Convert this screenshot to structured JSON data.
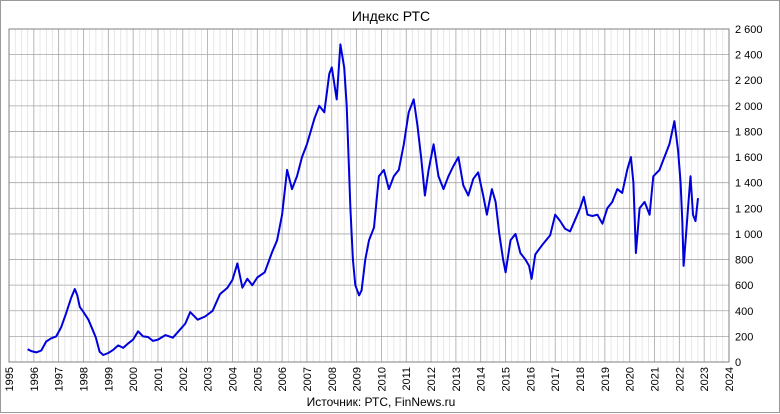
{
  "chart_data": {
    "type": "line",
    "title": "Индекс РТС",
    "source_note": "Источник: РТС, FinNews.ru",
    "xlabel": "",
    "ylabel": "",
    "xlim": [
      1995,
      2024
    ],
    "ylim": [
      0,
      2600
    ],
    "x_ticks": [
      1995,
      1996,
      1997,
      1998,
      1999,
      2000,
      2001,
      2002,
      2003,
      2004,
      2005,
      2006,
      2007,
      2008,
      2009,
      2010,
      2011,
      2012,
      2013,
      2014,
      2015,
      2016,
      2017,
      2018,
      2019,
      2020,
      2021,
      2022,
      2023,
      2024
    ],
    "y_ticks": [
      {
        "value": 0,
        "label": "0"
      },
      {
        "value": 200,
        "label": "200"
      },
      {
        "value": 400,
        "label": "400"
      },
      {
        "value": 600,
        "label": "600"
      },
      {
        "value": 800,
        "label": "800"
      },
      {
        "value": 1000,
        "label": "1 000"
      },
      {
        "value": 1200,
        "label": "1 200"
      },
      {
        "value": 1400,
        "label": "1 400"
      },
      {
        "value": 1600,
        "label": "1 600"
      },
      {
        "value": 1800,
        "label": "1 800"
      },
      {
        "value": 2000,
        "label": "2 000"
      },
      {
        "value": 2200,
        "label": "2 200"
      },
      {
        "value": 2400,
        "label": "2 400"
      },
      {
        "value": 2600,
        "label": "2 600"
      }
    ],
    "grid": true,
    "series": [
      {
        "color": "#0000dd",
        "points": [
          [
            1995.75,
            100
          ],
          [
            1995.9,
            85
          ],
          [
            1996.1,
            75
          ],
          [
            1996.3,
            90
          ],
          [
            1996.5,
            160
          ],
          [
            1996.7,
            185
          ],
          [
            1996.9,
            200
          ],
          [
            1997.1,
            270
          ],
          [
            1997.3,
            380
          ],
          [
            1997.5,
            500
          ],
          [
            1997.65,
            570
          ],
          [
            1997.75,
            520
          ],
          [
            1997.85,
            430
          ],
          [
            1998.0,
            390
          ],
          [
            1998.2,
            330
          ],
          [
            1998.35,
            260
          ],
          [
            1998.5,
            190
          ],
          [
            1998.65,
            80
          ],
          [
            1998.8,
            55
          ],
          [
            1999.0,
            70
          ],
          [
            1999.2,
            95
          ],
          [
            1999.4,
            130
          ],
          [
            1999.6,
            110
          ],
          [
            1999.8,
            145
          ],
          [
            2000.0,
            175
          ],
          [
            2000.2,
            240
          ],
          [
            2000.4,
            200
          ],
          [
            2000.6,
            195
          ],
          [
            2000.8,
            165
          ],
          [
            2001.0,
            175
          ],
          [
            2001.3,
            210
          ],
          [
            2001.6,
            190
          ],
          [
            2001.9,
            255
          ],
          [
            2002.1,
            300
          ],
          [
            2002.3,
            390
          ],
          [
            2002.6,
            330
          ],
          [
            2002.9,
            355
          ],
          [
            2003.2,
            400
          ],
          [
            2003.5,
            530
          ],
          [
            2003.8,
            580
          ],
          [
            2004.0,
            640
          ],
          [
            2004.2,
            770
          ],
          [
            2004.4,
            580
          ],
          [
            2004.6,
            650
          ],
          [
            2004.8,
            600
          ],
          [
            2005.0,
            660
          ],
          [
            2005.3,
            700
          ],
          [
            2005.6,
            860
          ],
          [
            2005.8,
            950
          ],
          [
            2006.0,
            1150
          ],
          [
            2006.2,
            1500
          ],
          [
            2006.4,
            1350
          ],
          [
            2006.6,
            1450
          ],
          [
            2006.8,
            1600
          ],
          [
            2007.0,
            1700
          ],
          [
            2007.3,
            1900
          ],
          [
            2007.5,
            2000
          ],
          [
            2007.7,
            1950
          ],
          [
            2007.9,
            2250
          ],
          [
            2008.0,
            2300
          ],
          [
            2008.2,
            2050
          ],
          [
            2008.35,
            2480
          ],
          [
            2008.5,
            2300
          ],
          [
            2008.6,
            2000
          ],
          [
            2008.75,
            1200
          ],
          [
            2008.85,
            800
          ],
          [
            2008.95,
            600
          ],
          [
            2009.1,
            520
          ],
          [
            2009.2,
            560
          ],
          [
            2009.35,
            800
          ],
          [
            2009.5,
            950
          ],
          [
            2009.7,
            1050
          ],
          [
            2009.9,
            1450
          ],
          [
            2010.1,
            1500
          ],
          [
            2010.3,
            1350
          ],
          [
            2010.5,
            1450
          ],
          [
            2010.7,
            1500
          ],
          [
            2010.9,
            1700
          ],
          [
            2011.1,
            1950
          ],
          [
            2011.3,
            2050
          ],
          [
            2011.45,
            1850
          ],
          [
            2011.6,
            1600
          ],
          [
            2011.75,
            1300
          ],
          [
            2011.9,
            1500
          ],
          [
            2012.1,
            1700
          ],
          [
            2012.3,
            1450
          ],
          [
            2012.5,
            1350
          ],
          [
            2012.7,
            1450
          ],
          [
            2012.9,
            1530
          ],
          [
            2013.1,
            1600
          ],
          [
            2013.3,
            1380
          ],
          [
            2013.5,
            1300
          ],
          [
            2013.7,
            1430
          ],
          [
            2013.9,
            1480
          ],
          [
            2014.1,
            1300
          ],
          [
            2014.25,
            1150
          ],
          [
            2014.45,
            1350
          ],
          [
            2014.6,
            1250
          ],
          [
            2014.75,
            1000
          ],
          [
            2014.9,
            800
          ],
          [
            2015.0,
            700
          ],
          [
            2015.2,
            950
          ],
          [
            2015.4,
            1000
          ],
          [
            2015.6,
            850
          ],
          [
            2015.8,
            800
          ],
          [
            2015.95,
            750
          ],
          [
            2016.05,
            650
          ],
          [
            2016.2,
            840
          ],
          [
            2016.5,
            920
          ],
          [
            2016.8,
            990
          ],
          [
            2017.0,
            1150
          ],
          [
            2017.2,
            1100
          ],
          [
            2017.4,
            1040
          ],
          [
            2017.6,
            1020
          ],
          [
            2017.8,
            1110
          ],
          [
            2018.0,
            1200
          ],
          [
            2018.15,
            1290
          ],
          [
            2018.3,
            1150
          ],
          [
            2018.5,
            1140
          ],
          [
            2018.7,
            1150
          ],
          [
            2018.9,
            1080
          ],
          [
            2019.1,
            1200
          ],
          [
            2019.3,
            1250
          ],
          [
            2019.5,
            1350
          ],
          [
            2019.7,
            1320
          ],
          [
            2019.9,
            1500
          ],
          [
            2020.05,
            1600
          ],
          [
            2020.15,
            1400
          ],
          [
            2020.25,
            850
          ],
          [
            2020.4,
            1200
          ],
          [
            2020.6,
            1250
          ],
          [
            2020.8,
            1150
          ],
          [
            2020.95,
            1450
          ],
          [
            2021.2,
            1500
          ],
          [
            2021.4,
            1600
          ],
          [
            2021.6,
            1700
          ],
          [
            2021.8,
            1880
          ],
          [
            2021.95,
            1650
          ],
          [
            2022.05,
            1400
          ],
          [
            2022.12,
            1100
          ],
          [
            2022.17,
            750
          ],
          [
            2022.25,
            950
          ],
          [
            2022.35,
            1200
          ],
          [
            2022.45,
            1450
          ],
          [
            2022.55,
            1150
          ],
          [
            2022.65,
            1100
          ],
          [
            2022.75,
            1280
          ]
        ]
      }
    ]
  }
}
